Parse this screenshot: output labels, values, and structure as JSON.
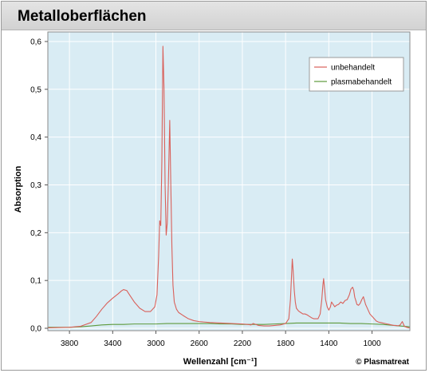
{
  "header": {
    "title": "Metalloberflächen"
  },
  "footer": {
    "copyright": "© Plasmatreat"
  },
  "chart_data": {
    "type": "line",
    "title": "",
    "xlabel": "Wellenzahl   [cm⁻¹]",
    "ylabel": "Absorption",
    "xlim": [
      4000,
      650
    ],
    "ylim": [
      -0.005,
      0.62
    ],
    "x_reversed": true,
    "grid": true,
    "legend_position": "top-right",
    "xticks": [
      3800,
      3400,
      3000,
      2600,
      2200,
      1800,
      1400,
      1000
    ],
    "xtick_labels": [
      "3800",
      "3400",
      "3000",
      "2600",
      "2200",
      "1800",
      "1400",
      "1000"
    ],
    "yticks": [
      0,
      0.1,
      0.2,
      0.3,
      0.4,
      0.5,
      0.6
    ],
    "ytick_labels": [
      "0,0",
      "0,1",
      "0,2",
      "0,3",
      "0,4",
      "0,5",
      "0,6"
    ],
    "colors": {
      "plot_background": "#d9ecf4",
      "grid": "#ffffff",
      "unbehandelt": "#d9605a",
      "plasmabehandelt": "#5e9a3c"
    },
    "series": [
      {
        "name": "unbehandelt",
        "x": [
          4000,
          3800,
          3700,
          3600,
          3550,
          3500,
          3450,
          3400,
          3350,
          3320,
          3300,
          3270,
          3250,
          3200,
          3150,
          3100,
          3050,
          3010,
          2990,
          2975,
          2965,
          2955,
          2945,
          2935,
          2925,
          2915,
          2905,
          2895,
          2885,
          2872,
          2862,
          2852,
          2842,
          2830,
          2810,
          2790,
          2750,
          2700,
          2650,
          2600,
          2500,
          2400,
          2300,
          2200,
          2150,
          2120,
          2100,
          2050,
          2000,
          1950,
          1900,
          1850,
          1800,
          1770,
          1755,
          1745,
          1738,
          1730,
          1720,
          1710,
          1700,
          1680,
          1660,
          1640,
          1620,
          1600,
          1580,
          1560,
          1540,
          1520,
          1500,
          1480,
          1465,
          1455,
          1448,
          1440,
          1430,
          1415,
          1400,
          1385,
          1375,
          1360,
          1345,
          1330,
          1310,
          1290,
          1270,
          1250,
          1230,
          1210,
          1195,
          1180,
          1170,
          1160,
          1150,
          1140,
          1125,
          1110,
          1095,
          1080,
          1070,
          1060,
          1050,
          1040,
          1030,
          1020,
          1000,
          980,
          960,
          940,
          920,
          900,
          880,
          860,
          840,
          820,
          800,
          780,
          760,
          740,
          720,
          700,
          680,
          660,
          650
        ],
        "y": [
          0.001,
          0.002,
          0.004,
          0.012,
          0.025,
          0.04,
          0.053,
          0.063,
          0.072,
          0.078,
          0.081,
          0.079,
          0.072,
          0.055,
          0.042,
          0.035,
          0.035,
          0.045,
          0.07,
          0.15,
          0.225,
          0.215,
          0.35,
          0.59,
          0.5,
          0.3,
          0.195,
          0.22,
          0.3,
          0.435,
          0.3,
          0.17,
          0.09,
          0.055,
          0.04,
          0.033,
          0.027,
          0.02,
          0.016,
          0.014,
          0.012,
          0.011,
          0.01,
          0.009,
          0.008,
          0.007,
          0.01,
          0.006,
          0.005,
          0.005,
          0.006,
          0.007,
          0.01,
          0.02,
          0.06,
          0.11,
          0.145,
          0.12,
          0.08,
          0.055,
          0.042,
          0.036,
          0.033,
          0.03,
          0.03,
          0.028,
          0.025,
          0.022,
          0.02,
          0.02,
          0.02,
          0.03,
          0.06,
          0.09,
          0.104,
          0.085,
          0.06,
          0.045,
          0.038,
          0.045,
          0.055,
          0.05,
          0.045,
          0.048,
          0.05,
          0.055,
          0.052,
          0.058,
          0.06,
          0.07,
          0.082,
          0.086,
          0.08,
          0.065,
          0.058,
          0.05,
          0.048,
          0.052,
          0.06,
          0.066,
          0.058,
          0.05,
          0.045,
          0.04,
          0.035,
          0.03,
          0.025,
          0.02,
          0.015,
          0.013,
          0.012,
          0.011,
          0.01,
          0.009,
          0.008,
          0.007,
          0.006,
          0.006,
          0.005,
          0.007,
          0.014,
          0.004,
          0.002,
          0.001,
          0.001
        ]
      },
      {
        "name": "plasmabehandelt",
        "x": [
          4000,
          3800,
          3700,
          3600,
          3500,
          3400,
          3300,
          3200,
          3100,
          3000,
          2900,
          2800,
          2700,
          2600,
          2500,
          2400,
          2300,
          2200,
          2100,
          2000,
          1900,
          1800,
          1700,
          1600,
          1500,
          1400,
          1300,
          1200,
          1100,
          1000,
          900,
          800,
          700,
          650
        ],
        "y": [
          0.002,
          0.002,
          0.003,
          0.005,
          0.007,
          0.008,
          0.008,
          0.009,
          0.009,
          0.009,
          0.01,
          0.01,
          0.01,
          0.01,
          0.01,
          0.009,
          0.009,
          0.008,
          0.008,
          0.008,
          0.009,
          0.01,
          0.011,
          0.011,
          0.011,
          0.011,
          0.011,
          0.01,
          0.01,
          0.009,
          0.008,
          0.006,
          0.004,
          0.003
        ]
      }
    ]
  }
}
